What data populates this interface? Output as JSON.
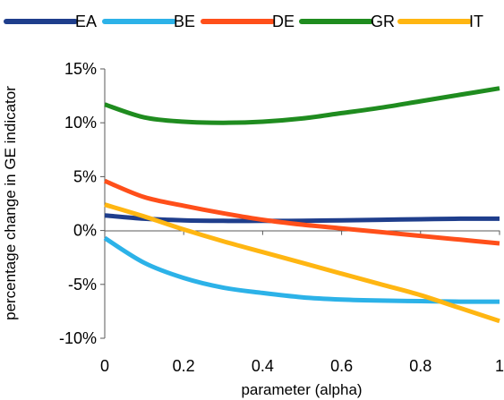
{
  "chart_data": {
    "type": "line",
    "title": "",
    "xlabel": "parameter (alpha)",
    "ylabel": "percentage change in GE indicator",
    "xlim": [
      0,
      1
    ],
    "ylim": [
      -10,
      15
    ],
    "x_ticks": [
      0,
      0.2,
      0.4,
      0.6,
      0.8,
      1
    ],
    "x_tick_labels": [
      "0",
      "0.2",
      "0.4",
      "0.6",
      "0.8",
      "1"
    ],
    "y_ticks": [
      -10,
      -5,
      0,
      5,
      10,
      15
    ],
    "y_tick_labels": [
      "-10%",
      "-5%",
      "0%",
      "5%",
      "10%",
      "15%"
    ],
    "y_unit": "%",
    "grid": false,
    "legend_position": "top",
    "x": [
      0,
      0.1,
      0.2,
      0.3,
      0.4,
      0.5,
      0.6,
      0.7,
      0.8,
      0.9,
      1
    ],
    "series": [
      {
        "name": "EA",
        "color": "#1f3e8c",
        "values": [
          1.4,
          1.1,
          0.95,
          0.9,
          0.9,
          0.9,
          0.95,
          1.0,
          1.05,
          1.1,
          1.1
        ]
      },
      {
        "name": "BE",
        "color": "#2cb2e8",
        "values": [
          -0.7,
          -3.0,
          -4.4,
          -5.3,
          -5.8,
          -6.2,
          -6.4,
          -6.5,
          -6.55,
          -6.6,
          -6.6
        ]
      },
      {
        "name": "DE",
        "color": "#ff4f1a",
        "values": [
          4.6,
          3.1,
          2.3,
          1.6,
          1.0,
          0.55,
          0.2,
          -0.15,
          -0.5,
          -0.85,
          -1.2
        ]
      },
      {
        "name": "GR",
        "color": "#1f8c1f",
        "values": [
          11.7,
          10.5,
          10.1,
          10.0,
          10.1,
          10.4,
          10.9,
          11.4,
          12.0,
          12.6,
          13.2
        ]
      },
      {
        "name": "IT",
        "color": "#ffb612",
        "values": [
          2.4,
          1.3,
          0.1,
          -1.0,
          -2.0,
          -3.0,
          -4.0,
          -5.0,
          -6.0,
          -7.2,
          -8.4
        ]
      }
    ]
  }
}
